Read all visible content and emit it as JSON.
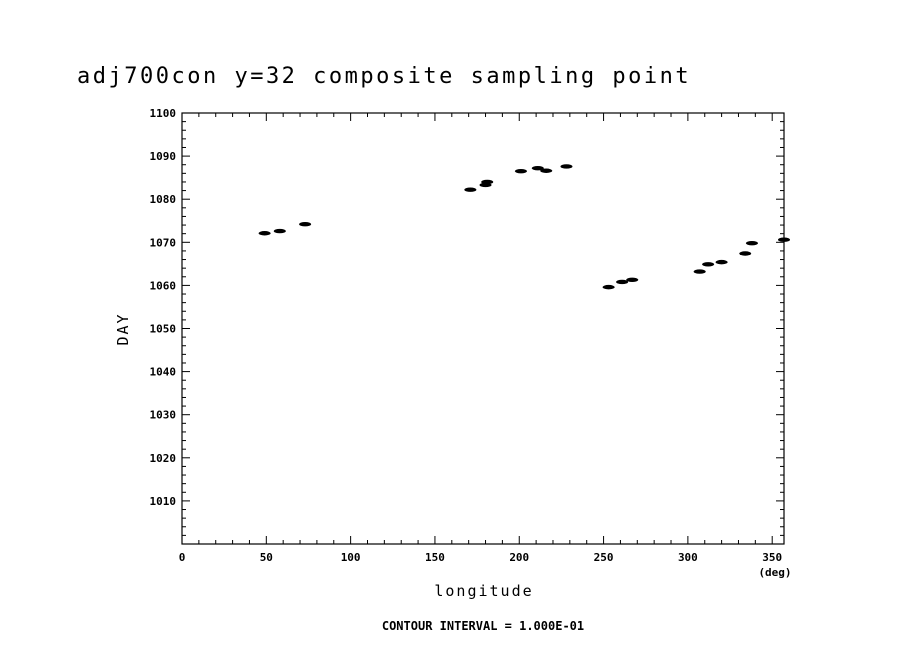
{
  "chart_data": {
    "type": "scatter",
    "title": "adj700con y=32 composite sampling point",
    "xlabel": "longitude",
    "xunit": "(deg)",
    "ylabel": "DAY",
    "footer": "CONTOUR INTERVAL = 1.000E-01",
    "xlim": [
      0,
      357
    ],
    "ylim": [
      1000,
      1100
    ],
    "xticks": [
      0,
      50,
      100,
      150,
      200,
      250,
      300,
      350
    ],
    "yticks": [
      1010,
      1020,
      1030,
      1040,
      1050,
      1060,
      1070,
      1080,
      1090,
      1100
    ],
    "grid": false,
    "points": [
      {
        "x": 49,
        "y": 1072.1
      },
      {
        "x": 58,
        "y": 1072.6
      },
      {
        "x": 73,
        "y": 1074.2
      },
      {
        "x": 171,
        "y": 1082.2
      },
      {
        "x": 180,
        "y": 1083.3
      },
      {
        "x": 181,
        "y": 1084.0
      },
      {
        "x": 201,
        "y": 1086.5
      },
      {
        "x": 211,
        "y": 1087.2
      },
      {
        "x": 216,
        "y": 1086.6
      },
      {
        "x": 228,
        "y": 1087.6
      },
      {
        "x": 253,
        "y": 1059.6
      },
      {
        "x": 261,
        "y": 1060.8
      },
      {
        "x": 267,
        "y": 1061.3
      },
      {
        "x": 307,
        "y": 1063.2
      },
      {
        "x": 312,
        "y": 1064.9
      },
      {
        "x": 320,
        "y": 1065.4
      },
      {
        "x": 334,
        "y": 1067.4
      },
      {
        "x": 338,
        "y": 1069.8
      },
      {
        "x": 357,
        "y": 1070.6
      }
    ]
  }
}
